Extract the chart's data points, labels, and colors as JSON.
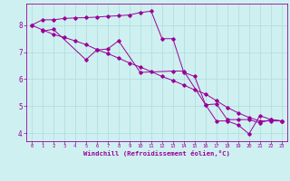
{
  "xlabel": "Windchill (Refroidissement éolien,°C)",
  "bg_color": "#cff0f0",
  "grid_color": "#aadddd",
  "line_color": "#990099",
  "spine_color": "#990099",
  "xlim": [
    -0.5,
    23.5
  ],
  "ylim": [
    3.7,
    8.8
  ],
  "xticks": [
    0,
    1,
    2,
    3,
    4,
    5,
    6,
    7,
    8,
    9,
    10,
    11,
    12,
    13,
    14,
    15,
    16,
    17,
    18,
    19,
    20,
    21,
    22,
    23
  ],
  "yticks": [
    4,
    5,
    6,
    7,
    8
  ],
  "series1_x": [
    0,
    1,
    2,
    3,
    4,
    5,
    6,
    7,
    8,
    9,
    10,
    11,
    12,
    13,
    14,
    15,
    16,
    17,
    18,
    19,
    20,
    21,
    22,
    23
  ],
  "series1_y": [
    8.0,
    8.2,
    8.2,
    8.25,
    8.27,
    8.28,
    8.3,
    8.33,
    8.35,
    8.38,
    8.47,
    8.52,
    7.5,
    7.5,
    6.25,
    6.1,
    5.05,
    4.45,
    4.45,
    4.3,
    3.97,
    4.65,
    4.5,
    4.45
  ],
  "series2_x": [
    1,
    2,
    5,
    6,
    7,
    8,
    10,
    13,
    14,
    16,
    17,
    18,
    19,
    20,
    21,
    22,
    23
  ],
  "series2_y": [
    7.78,
    7.85,
    6.72,
    7.08,
    7.12,
    7.42,
    6.25,
    6.3,
    6.3,
    5.05,
    5.08,
    4.5,
    4.5,
    4.5,
    4.38,
    4.5,
    4.45
  ],
  "series3_x": [
    0,
    1,
    2,
    3,
    4,
    5,
    6,
    7,
    8,
    9,
    10,
    11,
    12,
    13,
    14,
    15,
    16,
    17,
    18,
    19,
    20,
    21,
    22,
    23
  ],
  "series3_y": [
    8.0,
    7.83,
    7.66,
    7.55,
    7.42,
    7.28,
    7.1,
    6.95,
    6.78,
    6.6,
    6.45,
    6.28,
    6.1,
    5.95,
    5.78,
    5.6,
    5.45,
    5.2,
    4.95,
    4.75,
    4.58,
    4.45,
    4.45,
    4.45
  ]
}
